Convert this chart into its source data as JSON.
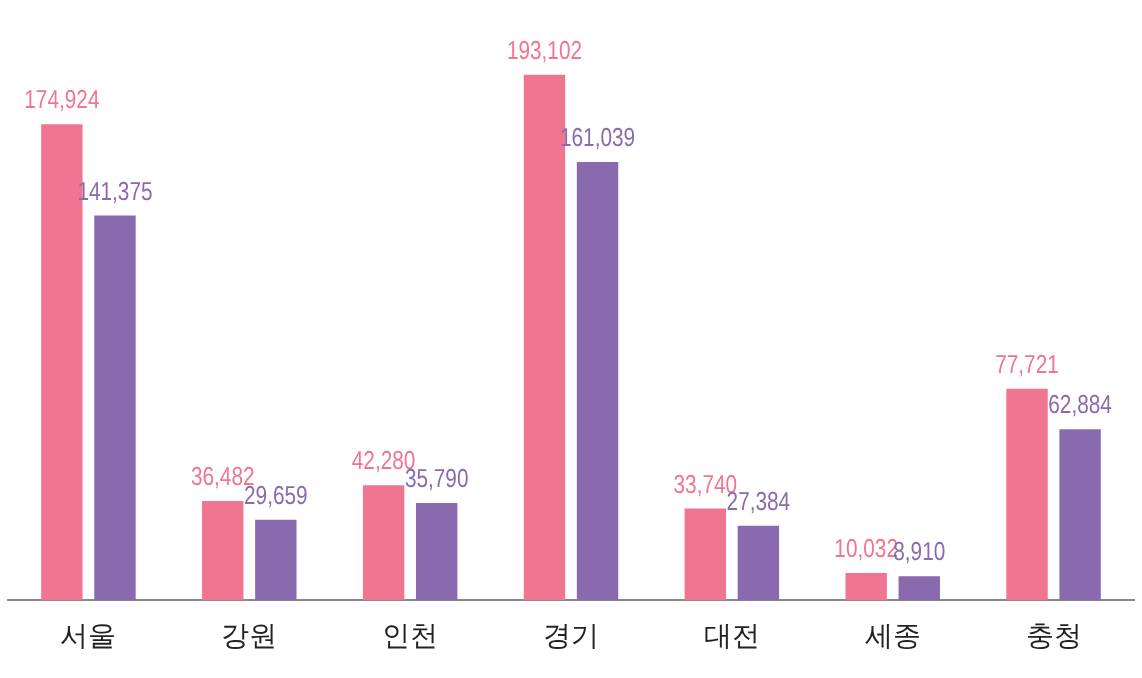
{
  "chart_data": {
    "type": "bar",
    "categories": [
      "서울",
      "강원",
      "인천",
      "경기",
      "대전",
      "세종",
      "충청"
    ],
    "series": [
      {
        "color": "#ef7590",
        "values": [
          174924,
          36482,
          42280,
          193102,
          33740,
          10032,
          77721
        ],
        "value_labels": [
          "174,924",
          "36,482",
          "42,280",
          "193,102",
          "33,740",
          "10,032",
          "77,721"
        ]
      },
      {
        "color": "#8a6aae",
        "values": [
          141375,
          29659,
          35790,
          161039,
          27384,
          8910,
          62884
        ],
        "value_labels": [
          "141,375",
          "29,659",
          "35,790",
          "161,039",
          "27,384",
          "8,910",
          "62,884"
        ]
      }
    ],
    "grid": false,
    "legend": false,
    "tick_labels": "x"
  }
}
